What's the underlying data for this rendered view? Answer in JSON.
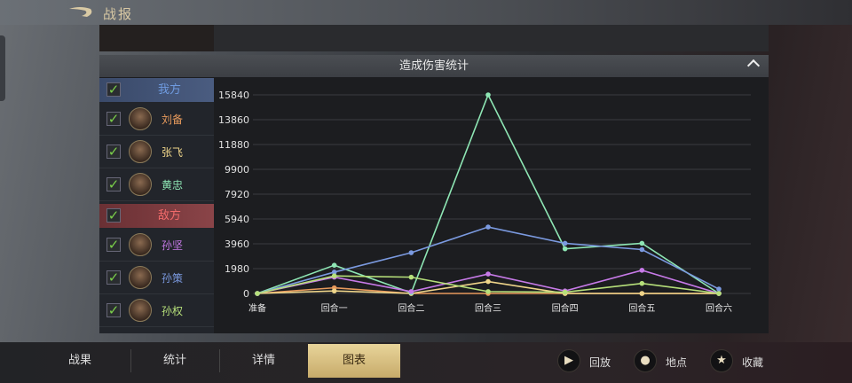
{
  "header": {
    "title": "战报"
  },
  "section": {
    "title": "造成伤害统计"
  },
  "groups": {
    "ally": {
      "label": "我方",
      "color": "#6f9be0"
    },
    "enemy": {
      "label": "敌方",
      "color": "#f06a6a"
    }
  },
  "units": [
    {
      "name": "刘备",
      "side": "ally",
      "color": "#e79a5c",
      "checked": true
    },
    {
      "name": "张飞",
      "side": "ally",
      "color": "#efd58a",
      "checked": true
    },
    {
      "name": "黄忠",
      "side": "ally",
      "color": "#8ee6b4",
      "checked": true
    },
    {
      "name": "孙坚",
      "side": "enemy",
      "color": "#c77ae8",
      "checked": true
    },
    {
      "name": "孙策",
      "side": "enemy",
      "color": "#7b9ae0",
      "checked": true
    },
    {
      "name": "孙权",
      "side": "enemy",
      "color": "#b6e07a",
      "checked": true
    }
  ],
  "chart_data": {
    "type": "line",
    "categories": [
      "准备",
      "回合一",
      "回合二",
      "回合三",
      "回合四",
      "回合五",
      "回合六"
    ],
    "yticks": [
      0,
      1980,
      3960,
      5940,
      7920,
      9900,
      11880,
      13860,
      15840
    ],
    "ylim": [
      0,
      15840
    ],
    "grid": true,
    "series": [
      {
        "name": "刘备",
        "color": "#e79a5c",
        "values": [
          0,
          450,
          0,
          0,
          0,
          0,
          0
        ]
      },
      {
        "name": "张飞",
        "color": "#efd58a",
        "values": [
          0,
          200,
          0,
          950,
          0,
          0,
          0
        ]
      },
      {
        "name": "黄忠",
        "color": "#8ee6b4",
        "values": [
          0,
          2250,
          50,
          15840,
          3560,
          4000,
          0
        ]
      },
      {
        "name": "孙坚",
        "color": "#c77ae8",
        "values": [
          0,
          1300,
          150,
          1550,
          200,
          1850,
          0
        ]
      },
      {
        "name": "孙策",
        "color": "#7b9ae0",
        "values": [
          0,
          1700,
          3250,
          5300,
          4000,
          3500,
          350
        ]
      },
      {
        "name": "孙权",
        "color": "#b6e07a",
        "values": [
          0,
          1400,
          1300,
          150,
          100,
          800,
          0
        ]
      }
    ]
  },
  "tabs": [
    {
      "label": "战果"
    },
    {
      "label": "统计"
    },
    {
      "label": "详情"
    },
    {
      "label": "图表",
      "selected": true
    }
  ],
  "actions": [
    {
      "label": "回放",
      "icon": "replay-icon"
    },
    {
      "label": "地点",
      "icon": "location-pin-icon"
    },
    {
      "label": "收藏",
      "icon": "star-icon"
    }
  ]
}
